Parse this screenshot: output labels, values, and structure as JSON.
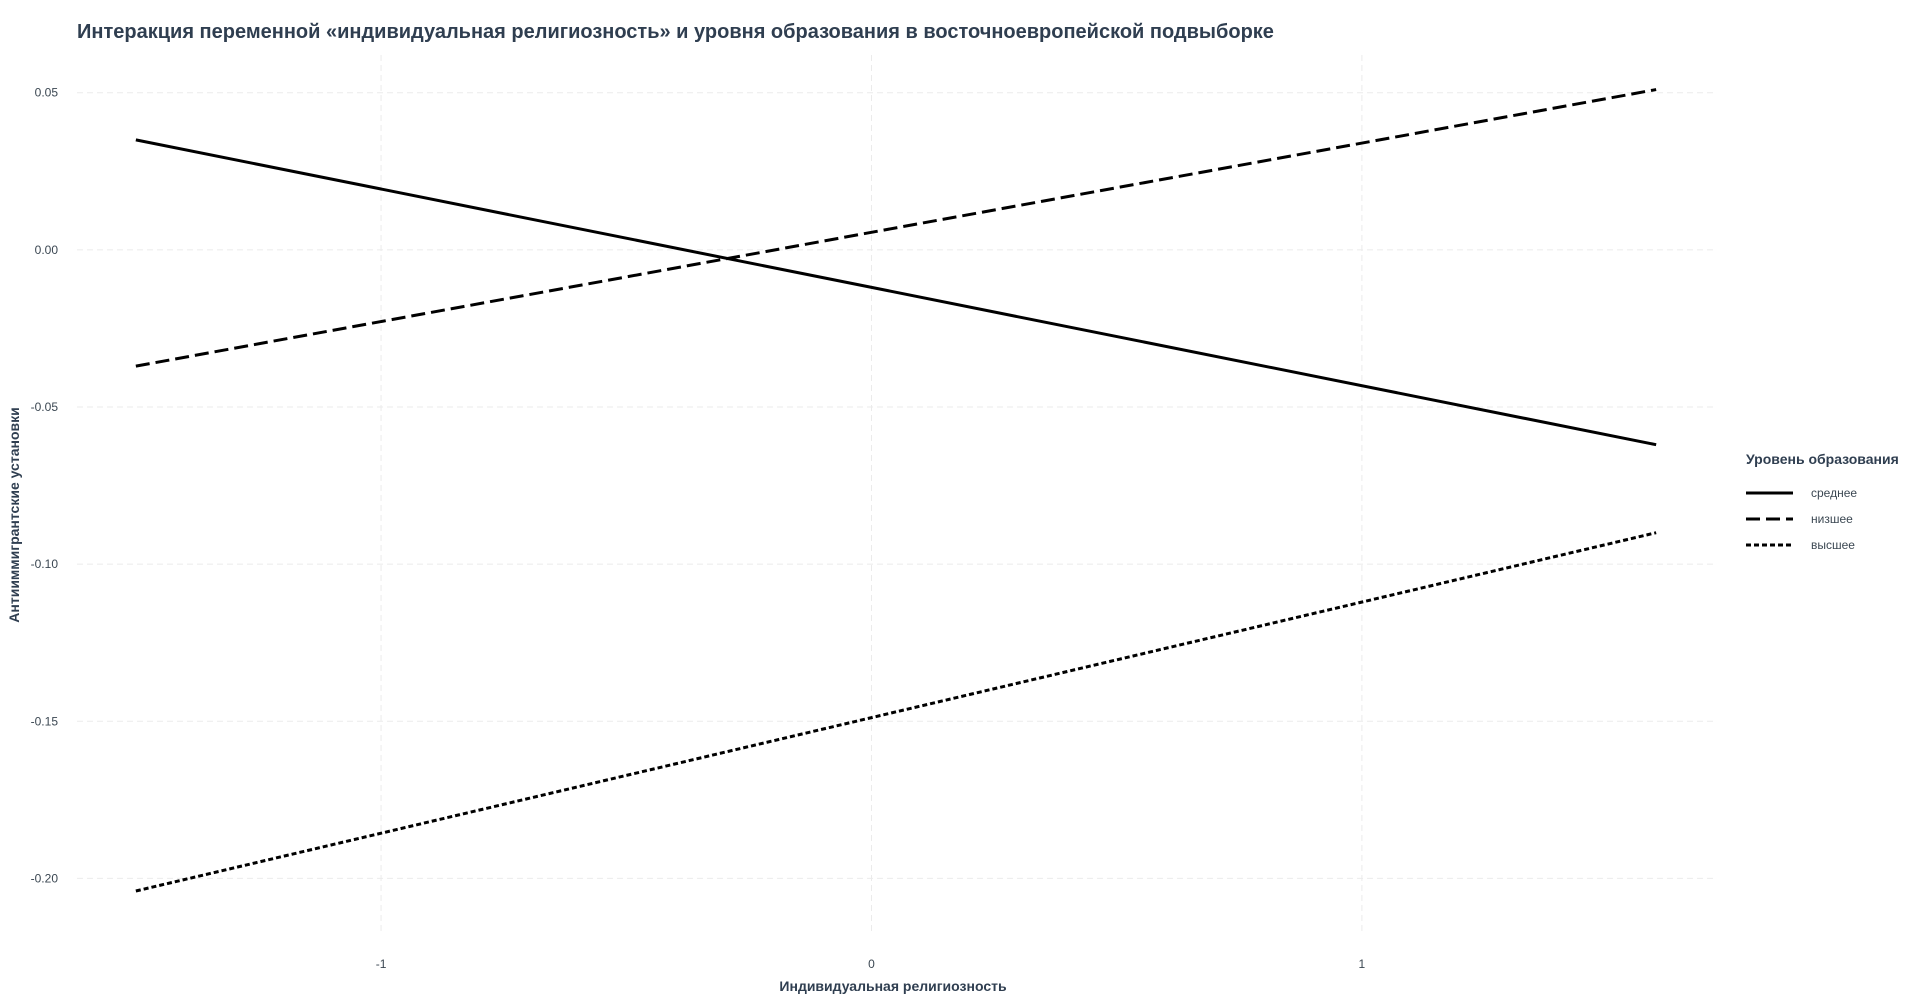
{
  "chart_data": {
    "type": "line",
    "title": "Интеракция переменной «индивидуальная религиозность» и уровня образования в восточноевропейской подвыборке",
    "xlabel": "Индивидуальная религиозность",
    "ylabel": "Антииммигрантские установки",
    "xlim": [
      -1.62,
      1.72
    ],
    "ylim": [
      -0.218,
      0.062
    ],
    "x_ticks": [
      -1,
      0,
      1
    ],
    "x_tick_labels": [
      "-1",
      "0",
      "1"
    ],
    "y_ticks": [
      -0.2,
      -0.15,
      -0.1,
      -0.05,
      0.0,
      0.05
    ],
    "y_tick_labels": [
      "-0.20",
      "-0.15",
      "-0.10",
      "-0.05",
      "0.00",
      "0.05"
    ],
    "grid": true,
    "legend": {
      "title": "Уровень образования",
      "position": "right"
    },
    "series": [
      {
        "name": "среднее",
        "style": "solid",
        "x": [
          -1.5,
          1.6
        ],
        "y": [
          0.035,
          -0.062
        ]
      },
      {
        "name": "низшее",
        "style": "dashed",
        "x": [
          -1.5,
          1.6
        ],
        "y": [
          -0.037,
          0.051
        ]
      },
      {
        "name": "высшее",
        "style": "dotted",
        "x": [
          -1.5,
          1.6
        ],
        "y": [
          -0.204,
          -0.09
        ]
      }
    ],
    "line_color": "#000000"
  }
}
